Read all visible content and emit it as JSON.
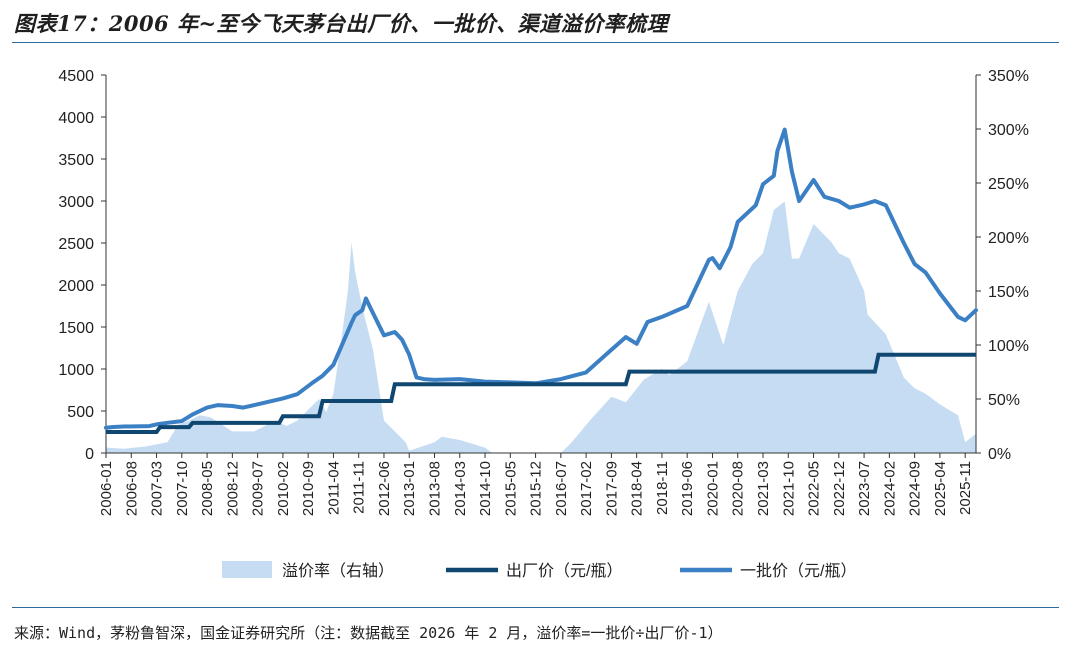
{
  "header": {
    "title": "图表17：2006 年~至今飞天茅台出厂价、一批价、渠道溢价率梳理"
  },
  "footer": {
    "source": "来源：Wind，茅粉鲁智深，国金证券研究所（注：数据截至 2026 年 2 月，溢价率=一批价÷出厂价-1）"
  },
  "colors": {
    "premium_fill": "#c6dcf2",
    "factory_line": "#0f4770",
    "wholesale_line": "#3b7fc4"
  },
  "chart_data": {
    "type": "area+line",
    "left_axis": {
      "min": 0,
      "max": 4500,
      "ticks": [
        "0",
        "500",
        "1000",
        "1500",
        "2000",
        "2500",
        "3000",
        "3500",
        "4000",
        "4500"
      ]
    },
    "right_axis": {
      "min": 0,
      "max": 350,
      "unit": "%",
      "ticks": [
        "0%",
        "50%",
        "100%",
        "150%",
        "200%",
        "250%",
        "300%",
        "350%"
      ]
    },
    "x_range": [
      "2006-01",
      "2026-02"
    ],
    "x_tick_labels": [
      "2006-01",
      "2006-08",
      "2007-03",
      "2007-10",
      "2008-05",
      "2008-12",
      "2009-07",
      "2010-02",
      "2010-09",
      "2011-04",
      "2011-11",
      "2012-06",
      "2013-01",
      "2013-08",
      "2014-03",
      "2014-10",
      "2015-05",
      "2015-12",
      "2016-07",
      "2017-02",
      "2017-09",
      "2018-04",
      "2018-11",
      "2019-06",
      "2020-01",
      "2020-08",
      "2021-03",
      "2021-10",
      "2022-05",
      "2022-12",
      "2023-07",
      "2024-02",
      "2024-09",
      "2025-04",
      "2025-11"
    ],
    "grid": false,
    "legend_position": "bottom",
    "series": [
      {
        "name": "溢价率（右轴）",
        "axis": "right",
        "kind": "area",
        "points": [
          [
            "2006-01",
            5
          ],
          [
            "2006-06",
            4
          ],
          [
            "2006-12",
            6
          ],
          [
            "2007-06",
            10
          ],
          [
            "2007-09",
            26
          ],
          [
            "2007-12",
            30
          ],
          [
            "2008-03",
            35
          ],
          [
            "2008-06",
            33
          ],
          [
            "2008-12",
            20
          ],
          [
            "2009-06",
            20
          ],
          [
            "2009-12",
            30
          ],
          [
            "2010-03",
            25
          ],
          [
            "2010-06",
            30
          ],
          [
            "2010-09",
            40
          ],
          [
            "2010-12",
            50
          ],
          [
            "2011-02",
            38
          ],
          [
            "2011-04",
            55
          ],
          [
            "2011-06",
            100
          ],
          [
            "2011-08",
            150
          ],
          [
            "2011-09",
            195
          ],
          [
            "2011-10",
            168
          ],
          [
            "2011-12",
            135
          ],
          [
            "2012-03",
            95
          ],
          [
            "2012-06",
            30
          ],
          [
            "2012-09",
            20
          ],
          [
            "2012-12",
            10
          ],
          [
            "2013-01",
            2
          ],
          [
            "2013-08",
            10
          ],
          [
            "2013-10",
            15
          ],
          [
            "2014-03",
            12
          ],
          [
            "2014-10",
            5
          ],
          [
            "2014-12",
            0
          ],
          [
            "2016-07",
            0
          ],
          [
            "2016-10",
            10
          ],
          [
            "2017-03",
            30
          ],
          [
            "2017-09",
            52
          ],
          [
            "2018-01",
            47
          ],
          [
            "2018-06",
            68
          ],
          [
            "2018-11",
            78
          ],
          [
            "2019-01",
            72
          ],
          [
            "2019-06",
            85
          ],
          [
            "2019-12",
            140
          ],
          [
            "2020-02",
            120
          ],
          [
            "2020-04",
            100
          ],
          [
            "2020-08",
            150
          ],
          [
            "2020-12",
            175
          ],
          [
            "2021-03",
            185
          ],
          [
            "2021-06",
            225
          ],
          [
            "2021-09",
            233
          ],
          [
            "2021-11",
            180
          ],
          [
            "2022-01",
            180
          ],
          [
            "2022-05",
            212
          ],
          [
            "2022-10",
            195
          ],
          [
            "2022-12",
            185
          ],
          [
            "2023-03",
            180
          ],
          [
            "2023-07",
            150
          ],
          [
            "2023-08",
            128
          ],
          [
            "2024-01",
            110
          ],
          [
            "2024-06",
            70
          ],
          [
            "2024-09",
            60
          ],
          [
            "2024-12",
            55
          ],
          [
            "2025-04",
            45
          ],
          [
            "2025-09",
            35
          ],
          [
            "2025-11",
            10
          ],
          [
            "2026-02",
            18
          ]
        ]
      },
      {
        "name": "出厂价（元/瓶）",
        "axis": "left",
        "kind": "step",
        "points": [
          [
            "2006-01",
            250
          ],
          [
            "2007-03",
            250
          ],
          [
            "2007-04",
            308
          ],
          [
            "2007-12",
            308
          ],
          [
            "2008-01",
            358
          ],
          [
            "2010-01",
            358
          ],
          [
            "2010-02",
            438
          ],
          [
            "2010-12",
            438
          ],
          [
            "2011-01",
            619
          ],
          [
            "2012-08",
            619
          ],
          [
            "2012-09",
            819
          ],
          [
            "2018-01",
            819
          ],
          [
            "2018-02",
            969
          ],
          [
            "2023-10",
            969
          ],
          [
            "2023-11",
            1169
          ],
          [
            "2026-02",
            1169
          ]
        ]
      },
      {
        "name": "一批价（元/瓶）",
        "axis": "left",
        "kind": "line",
        "points": [
          [
            "2006-01",
            300
          ],
          [
            "2006-03",
            310
          ],
          [
            "2006-06",
            315
          ],
          [
            "2007-01",
            320
          ],
          [
            "2007-03",
            340
          ],
          [
            "2007-06",
            360
          ],
          [
            "2007-10",
            380
          ],
          [
            "2008-01",
            460
          ],
          [
            "2008-05",
            540
          ],
          [
            "2008-08",
            570
          ],
          [
            "2008-12",
            560
          ],
          [
            "2009-03",
            540
          ],
          [
            "2009-07",
            580
          ],
          [
            "2010-02",
            650
          ],
          [
            "2010-06",
            700
          ],
          [
            "2010-10",
            830
          ],
          [
            "2011-01",
            920
          ],
          [
            "2011-04",
            1050
          ],
          [
            "2011-07",
            1350
          ],
          [
            "2011-09",
            1550
          ],
          [
            "2011-10",
            1640
          ],
          [
            "2011-12",
            1700
          ],
          [
            "2012-01",
            1840
          ],
          [
            "2012-02",
            1750
          ],
          [
            "2012-06",
            1400
          ],
          [
            "2012-09",
            1440
          ],
          [
            "2012-11",
            1350
          ],
          [
            "2013-01",
            1170
          ],
          [
            "2013-03",
            900
          ],
          [
            "2013-05",
            880
          ],
          [
            "2013-08",
            870
          ],
          [
            "2014-03",
            880
          ],
          [
            "2014-10",
            850
          ],
          [
            "2015-05",
            840
          ],
          [
            "2015-12",
            830
          ],
          [
            "2016-07",
            880
          ],
          [
            "2017-02",
            960
          ],
          [
            "2017-09",
            1230
          ],
          [
            "2018-01",
            1380
          ],
          [
            "2018-04",
            1300
          ],
          [
            "2018-07",
            1560
          ],
          [
            "2018-11",
            1620
          ],
          [
            "2019-06",
            1750
          ],
          [
            "2019-12",
            2300
          ],
          [
            "2020-01",
            2320
          ],
          [
            "2020-03",
            2200
          ],
          [
            "2020-06",
            2450
          ],
          [
            "2020-08",
            2750
          ],
          [
            "2021-01",
            2950
          ],
          [
            "2021-03",
            3200
          ],
          [
            "2021-06",
            3300
          ],
          [
            "2021-07",
            3600
          ],
          [
            "2021-09",
            3850
          ],
          [
            "2021-11",
            3350
          ],
          [
            "2022-01",
            3000
          ],
          [
            "2022-05",
            3250
          ],
          [
            "2022-08",
            3050
          ],
          [
            "2022-12",
            3000
          ],
          [
            "2023-03",
            2920
          ],
          [
            "2023-07",
            2960
          ],
          [
            "2023-10",
            3000
          ],
          [
            "2024-01",
            2950
          ],
          [
            "2024-06",
            2500
          ],
          [
            "2024-09",
            2250
          ],
          [
            "2024-12",
            2150
          ],
          [
            "2025-04",
            1900
          ],
          [
            "2025-09",
            1620
          ],
          [
            "2025-11",
            1580
          ],
          [
            "2026-02",
            1700
          ]
        ]
      }
    ]
  }
}
